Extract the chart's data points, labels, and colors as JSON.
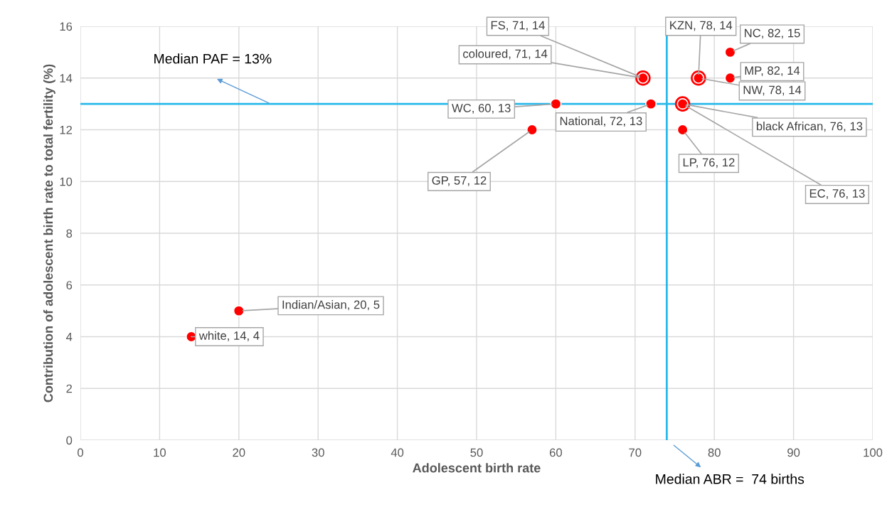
{
  "chart_data": {
    "type": "scatter",
    "xlabel": "Adolescent birth rate",
    "ylabel": "Contribution of adolescent birth rate to total fertility (%)",
    "x": [
      82,
      82,
      78,
      78,
      71,
      71,
      60,
      72,
      76,
      76,
      76,
      57,
      20,
      14
    ],
    "series": [
      {
        "color": "#ff0000",
        "values": [
          15,
          14,
          14,
          14,
          14,
          14,
          13,
          13,
          13,
          13,
          12,
          12,
          5,
          4
        ]
      }
    ],
    "value_labels": [
      "NC, 82, 15",
      "MP, 82, 14",
      "NW, 78, 14",
      "KZN, 78, 14",
      "FS, 71, 14",
      "coloured, 71, 14",
      "WC, 60, 13",
      "National, 72, 13",
      "black African, 76, 13",
      "EC, 76, 13",
      "LP, 76, 12",
      "GP, 57, 12",
      "Indian/Asian, 20, 5",
      "white, 14, 4"
    ],
    "marker": "circle",
    "xlim": [
      0,
      100
    ],
    "ylim": [
      0,
      16
    ],
    "xticks": [
      0,
      10,
      20,
      30,
      40,
      50,
      60,
      70,
      80,
      90,
      100
    ],
    "yticks": [
      0,
      2,
      4,
      6,
      8,
      10,
      12,
      14,
      16
    ],
    "grid": true,
    "ref_lines": [
      {
        "axis": "y",
        "value": 13,
        "color": "#29b8ea"
      },
      {
        "axis": "x",
        "value": 74,
        "color": "#29b8ea"
      }
    ],
    "annotations": [
      {
        "text": "Median PAF = 13%",
        "x": 24,
        "y": 13
      },
      "Median ABR =  74 births"
    ]
  }
}
